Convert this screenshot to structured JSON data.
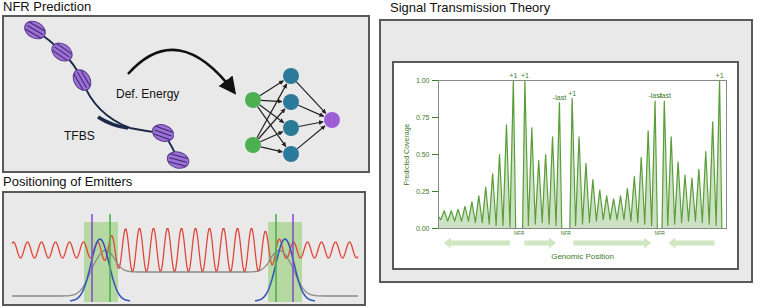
{
  "nfr_prediction": {
    "title": "NFR Prediction",
    "tfbs_label": "TFBS",
    "energy_label": "Def. Energy"
  },
  "emitters": {
    "title": "Positioning of Emitters"
  },
  "signal": {
    "title": "Signal Transmission Theory"
  },
  "chart_data": {
    "type": "line",
    "xlabel": "Genomic Position",
    "ylabel": "Predicted Coverage",
    "color": "#5a9e3a",
    "grid": false,
    "tick_labels": "y",
    "xlim": [
      0,
      100
    ],
    "xticks": [],
    "ylim": [
      0,
      1
    ],
    "yticks": [
      {
        "value": 0,
        "label": "0.00"
      },
      {
        "value": 0.25,
        "label": "0.25"
      },
      {
        "value": 0.5,
        "label": "0.50"
      },
      {
        "value": 0.75,
        "label": "0.75"
      },
      {
        "value": 1,
        "label": "1.00"
      }
    ],
    "x": [
      0,
      0.8,
      2,
      3.2,
      4.4,
      5.6,
      6.8,
      8,
      9.2,
      10.4,
      11.6,
      12.8,
      14,
      15.2,
      16.4,
      17.6,
      18.8,
      20,
      21.2,
      22.4,
      23.6,
      24.8,
      26,
      26.8,
      29.2,
      30,
      31.2,
      32.4,
      33.6,
      34.8,
      36,
      37.2,
      38.4,
      39.6,
      40.8,
      42,
      42.8,
      45.6,
      46.4,
      47.6,
      48.8,
      50,
      51.2,
      52.4,
      53.6,
      54.8,
      56,
      57.2,
      58.4,
      59.6,
      60.8,
      62,
      63.2,
      64.4,
      65.6,
      66.8,
      68,
      69.2,
      70.4,
      71.6,
      72.8,
      74,
      75.2,
      76,
      77.6,
      78.4,
      79.6,
      80.8,
      82,
      83.2,
      84.4,
      85.6,
      86.8,
      88,
      89.2,
      90.4,
      91.6,
      92.8,
      94,
      95.2,
      96.4,
      97.6,
      98.4,
      100
    ],
    "values": [
      0.08,
      0.06,
      0.12,
      0.05,
      0.12,
      0.05,
      0.13,
      0.05,
      0.15,
      0.05,
      0.18,
      0.04,
      0.22,
      0.04,
      0.28,
      0.03,
      0.37,
      0.02,
      0.5,
      0.02,
      0.7,
      0.01,
      1.0,
      0,
      0,
      1.0,
      0.02,
      0.68,
      0.03,
      0.46,
      0.04,
      0.5,
      0.03,
      0.62,
      0.02,
      0.85,
      0,
      0,
      0.88,
      0.02,
      0.62,
      0.03,
      0.44,
      0.04,
      0.33,
      0.05,
      0.26,
      0.06,
      0.22,
      0.06,
      0.2,
      0.06,
      0.22,
      0.06,
      0.27,
      0.05,
      0.35,
      0.04,
      0.48,
      0.03,
      0.66,
      0.02,
      0.86,
      0,
      0,
      0.86,
      0.02,
      0.62,
      0.03,
      0.45,
      0.04,
      0.36,
      0.05,
      0.34,
      0.05,
      0.4,
      0.04,
      0.52,
      0.03,
      0.72,
      0.02,
      1.0,
      0,
      0
    ],
    "annotations": [
      {
        "x": 26,
        "y": 1.0,
        "text": "+1"
      },
      {
        "x": 30,
        "y": 1.0,
        "text": "+1"
      },
      {
        "x": 42,
        "y": 0.85,
        "text": "-last"
      },
      {
        "x": 46.4,
        "y": 0.88,
        "text": "+1"
      },
      {
        "x": 75.2,
        "y": 0.86,
        "text": "-last"
      },
      {
        "x": 78.4,
        "y": 0.86,
        "text": "-last"
      },
      {
        "x": 97.6,
        "y": 1.0,
        "text": "+1"
      }
    ],
    "nfr_labels": [
      {
        "x": 28,
        "text": "NFR"
      },
      {
        "x": 44.2,
        "text": "NFR"
      },
      {
        "x": 76.8,
        "text": "NFR"
      }
    ]
  }
}
